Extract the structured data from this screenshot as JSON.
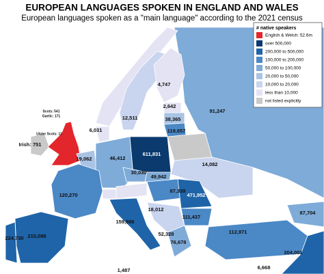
{
  "header": {
    "title": "EUROPEAN LANGUAGES SPOKEN IN ENGLAND AND WALES",
    "subtitle": "European languages spoken as a \"main language\" according to the 2021 census"
  },
  "legend": {
    "title": "# native speakers",
    "items": [
      {
        "label": "English & Welsh: 52.6m",
        "color": "#e3262b"
      },
      {
        "label": "over 500,000",
        "color": "#0a3a6e"
      },
      {
        "label": "200,000 to 500,000",
        "color": "#1f64a8"
      },
      {
        "label": "100,000 to 200,000",
        "color": "#4b88c6"
      },
      {
        "label": "50,000 to 100,000",
        "color": "#7eabd8"
      },
      {
        "label": "20,000 to 50,000",
        "color": "#a9c3e4"
      },
      {
        "label": "10,000 to 20,000",
        "color": "#c9d4ee"
      },
      {
        "label": "less than 10,000",
        "color": "#e4e3f3"
      },
      {
        "label": "not listed explicitly",
        "color": "#c9c9c9"
      }
    ]
  },
  "labels": [
    "Scots: 541",
    "Gaelic: 171",
    "Ulster Scots: 13",
    "Irish: 751",
    "19,062",
    "46,412",
    "611,831",
    "14,082",
    "4,747",
    "12,511",
    "2,642",
    "38,365",
    "119,657",
    "91,247",
    "6,031",
    "30,030",
    "49,942",
    "87,339",
    "471,952",
    "120,270",
    "18,012",
    "111,437",
    "159,986",
    "52,328",
    "76,678",
    "112,971",
    "87,704",
    "215,088",
    "224,730",
    "204,001",
    "6,668",
    "1,487"
  ]
}
